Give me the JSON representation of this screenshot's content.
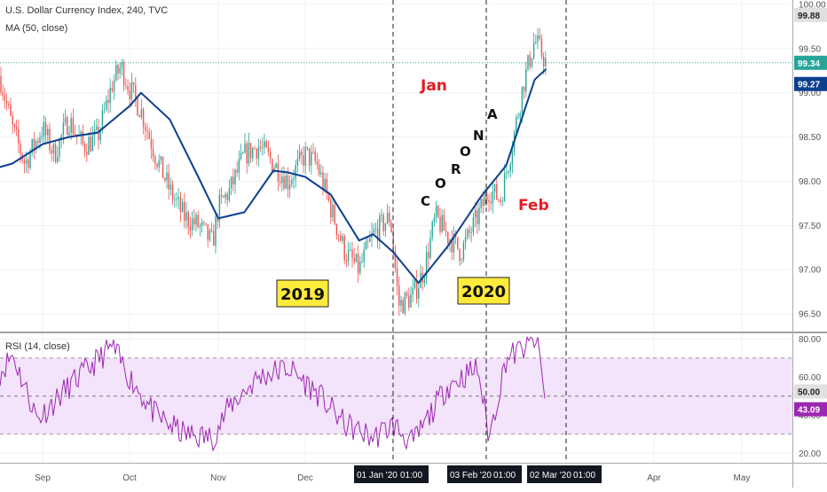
{
  "header": {
    "symbol_line": "U.S. Dollar Currency Index, 240, TVC",
    "ma_line": "MA (50, close)",
    "rsi_line": "RSI (14, close)"
  },
  "colors": {
    "up_candle": "#26a69a",
    "down_candle": "#ef5350",
    "ma_line": "#0d3f8f",
    "rsi_line": "#9c27b0",
    "rsi_band": "#f3e3fb",
    "annotation_red": "#e51c23",
    "year_box": "#ffeb3b"
  },
  "chart_data": [
    {
      "type": "line",
      "panel": "price",
      "series": [
        {
          "name": "MA (50, close)",
          "x": [
            "2019-08-01",
            "2019-08-10",
            "2019-08-20",
            "2019-09-01",
            "2019-09-10",
            "2019-09-20",
            "2019-10-01",
            "2019-10-05",
            "2019-10-15",
            "2019-10-25",
            "2019-11-01",
            "2019-11-10",
            "2019-11-20",
            "2019-11-25",
            "2019-12-01",
            "2019-12-10",
            "2019-12-20",
            "2019-12-25",
            "2020-01-01",
            "2020-01-10",
            "2020-01-20",
            "2020-02-01",
            "2020-02-10",
            "2020-02-20",
            "2020-02-24"
          ],
          "values": [
            97.68,
            98.12,
            98.2,
            98.42,
            98.5,
            98.55,
            98.85,
            99.0,
            98.7,
            98.05,
            97.58,
            97.65,
            98.12,
            98.1,
            98.05,
            97.85,
            97.33,
            97.4,
            97.2,
            96.85,
            97.25,
            97.82,
            98.18,
            99.15,
            99.27
          ]
        }
      ],
      "candles": {
        "x": [
          "2019-08-01",
          "2019-08-05",
          "2019-08-10",
          "2019-08-15",
          "2019-08-20",
          "2019-08-25",
          "2019-09-01",
          "2019-09-05",
          "2019-09-10",
          "2019-09-15",
          "2019-09-20",
          "2019-09-25",
          "2019-09-28",
          "2019-10-01",
          "2019-10-05",
          "2019-10-10",
          "2019-10-15",
          "2019-10-20",
          "2019-10-25",
          "2019-10-30",
          "2019-11-01",
          "2019-11-05",
          "2019-11-10",
          "2019-11-15",
          "2019-11-20",
          "2019-11-25",
          "2019-12-01",
          "2019-12-05",
          "2019-12-10",
          "2019-12-15",
          "2019-12-20",
          "2019-12-25",
          "2019-12-31",
          "2020-01-03",
          "2020-01-08",
          "2020-01-12",
          "2020-01-16",
          "2020-01-20",
          "2020-01-25",
          "2020-01-31",
          "2020-02-04",
          "2020-02-08",
          "2020-02-12",
          "2020-02-16",
          "2020-02-20",
          "2020-02-24"
        ],
        "close": [
          98.1,
          98.3,
          97.8,
          99.2,
          98.6,
          98.2,
          98.6,
          98.3,
          98.7,
          98.4,
          98.5,
          99.1,
          99.3,
          99.05,
          98.8,
          98.3,
          97.9,
          97.6,
          97.5,
          97.3,
          97.7,
          97.9,
          98.3,
          98.4,
          98.2,
          98.0,
          98.3,
          98.2,
          97.7,
          97.2,
          97.0,
          97.4,
          97.6,
          96.6,
          96.7,
          97.0,
          97.6,
          97.4,
          97.2,
          97.6,
          97.9,
          97.8,
          98.4,
          99.1,
          99.6,
          99.34
        ]
      },
      "xlabel": "",
      "ylabel": "",
      "ylim": [
        96.3,
        100.05
      ],
      "y_ticks": [
        "96.50",
        "97.00",
        "97.50",
        "98.00",
        "98.50",
        "99.00",
        "99.50",
        "100.00"
      ],
      "x_ticks": [
        "Sep",
        "Oct",
        "Nov",
        "Dec",
        "Apr",
        "May"
      ],
      "price_labels": [
        {
          "label": "99.88",
          "kind": "high"
        },
        {
          "label": "99.34",
          "kind": "last"
        },
        {
          "label": "99.27",
          "kind": "ma"
        }
      ],
      "vlines": [
        {
          "label": "01 Jan '20",
          "time": "01:00"
        },
        {
          "label": "03 Feb '20",
          "time": "01:00"
        },
        {
          "label": "02 Mar '20",
          "time": "01:00"
        }
      ],
      "annotations": {
        "jan": "Jan",
        "feb": "Feb",
        "y2019": "2019",
        "y2020": "2020",
        "corona": [
          "C",
          "O",
          "R",
          "O",
          "N",
          "A"
        ]
      },
      "grid": true
    },
    {
      "type": "line",
      "panel": "rsi",
      "series": [
        {
          "name": "RSI (14, close)",
          "x": [
            "2019-08-01",
            "2019-08-10",
            "2019-08-20",
            "2019-08-30",
            "2019-09-10",
            "2019-09-25",
            "2019-10-01",
            "2019-10-10",
            "2019-10-20",
            "2019-10-30",
            "2019-11-05",
            "2019-11-15",
            "2019-11-25",
            "2019-12-05",
            "2019-12-15",
            "2019-12-25",
            "2020-01-01",
            "2020-01-08",
            "2020-01-20",
            "2020-01-31",
            "2020-02-04",
            "2020-02-10",
            "2020-02-16",
            "2020-02-21",
            "2020-02-24"
          ],
          "values": [
            60,
            52,
            72,
            38,
            55,
            76,
            60,
            40,
            30,
            28,
            45,
            60,
            65,
            52,
            35,
            28,
            35,
            25,
            55,
            65,
            28,
            70,
            75,
            80,
            43.09
          ]
        }
      ],
      "ylim": [
        15,
        83
      ],
      "y_ticks": [
        "20.00",
        "40.00",
        "60.00",
        "80.00"
      ],
      "band": [
        30,
        70
      ],
      "midline": 50,
      "current_labels": [
        "50.00",
        "43.09"
      ],
      "grid": true
    }
  ]
}
